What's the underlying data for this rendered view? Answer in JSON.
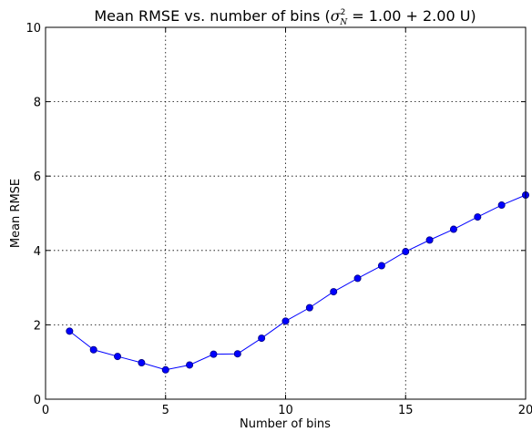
{
  "chart_data": {
    "type": "line",
    "title": "Mean RMSE vs. number of bins (",
    "title_math": "σ",
    "title_math_sup": "2",
    "title_math_sub": "N",
    "title_suffix": " = 1.00 + 2.00 U)",
    "xlabel": "Number of bins",
    "ylabel": "Mean RMSE",
    "xlim": [
      0,
      20
    ],
    "ylim": [
      0,
      10
    ],
    "xticks": [
      0,
      5,
      10,
      15,
      20
    ],
    "yticks": [
      0,
      2,
      4,
      6,
      8,
      10
    ],
    "grid": true,
    "color": "#0000ff",
    "series": [
      {
        "x": [
          1,
          2,
          3,
          4,
          5,
          6,
          7,
          8,
          9,
          10,
          11,
          12,
          13,
          14,
          15,
          16,
          17,
          18,
          19,
          20
        ],
        "values": [
          1.83,
          1.33,
          1.15,
          0.98,
          0.79,
          0.92,
          1.21,
          1.22,
          1.64,
          2.1,
          2.46,
          2.89,
          3.25,
          3.59,
          3.97,
          4.28,
          4.57,
          4.9,
          5.22,
          5.49
        ]
      }
    ]
  }
}
